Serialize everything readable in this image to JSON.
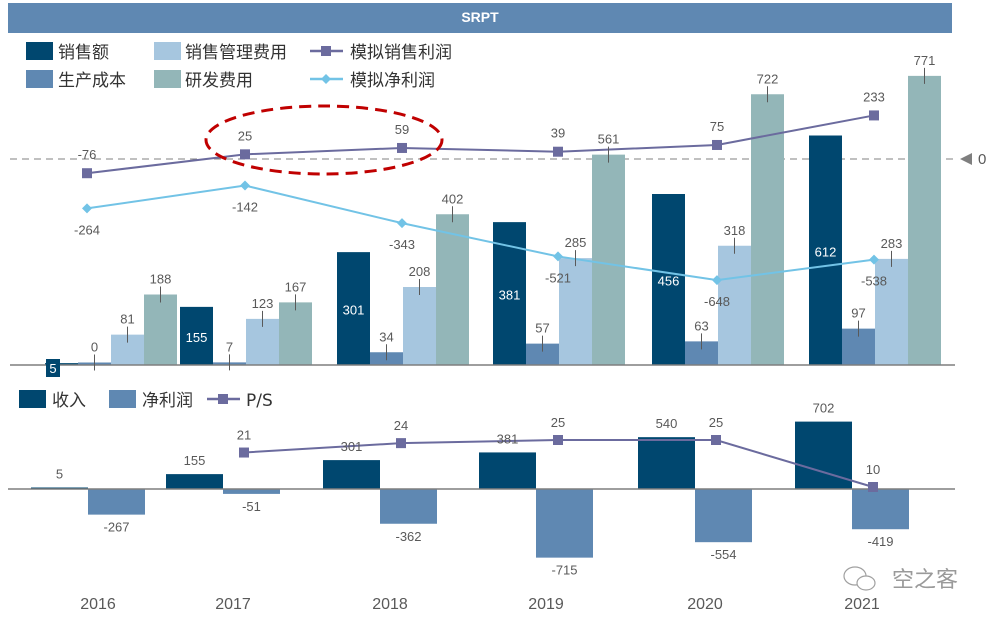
{
  "header": {
    "title": "SRPT"
  },
  "colors": {
    "sales": "#00476f",
    "cost": "#5f88b2",
    "sga": "#a6c6df",
    "rnd": "#93b6b8",
    "sim_sales_profit": "#6b6b9e",
    "sim_net_profit": "#72c3e6",
    "highlight": "#c00000"
  },
  "watermark": "空之客",
  "zero_marker_label": "0",
  "chart_data": [
    {
      "type": "bar",
      "title": "SRPT",
      "categories": [
        "2016",
        "2017",
        "2018",
        "2019",
        "2020",
        "2021"
      ],
      "legend": [
        {
          "name": "销售额",
          "kind": "bar"
        },
        {
          "name": "销售管理费用",
          "kind": "bar"
        },
        {
          "name": "模拟销售利润",
          "kind": "line-square"
        },
        {
          "name": "生产成本",
          "kind": "bar"
        },
        {
          "name": "研发费用",
          "kind": "bar"
        },
        {
          "name": "模拟净利润",
          "kind": "line-diamond"
        }
      ],
      "series": [
        {
          "name": "销售额",
          "type": "bar",
          "values": [
            5,
            155,
            301,
            381,
            456,
            612
          ]
        },
        {
          "name": "生产成本",
          "type": "bar",
          "values": [
            0,
            7,
            34,
            57,
            63,
            97
          ]
        },
        {
          "name": "销售管理费用",
          "type": "bar",
          "values": [
            81,
            123,
            208,
            285,
            318,
            283
          ]
        },
        {
          "name": "研发费用",
          "type": "bar",
          "values": [
            188,
            167,
            402,
            561,
            722,
            771
          ]
        },
        {
          "name": "模拟销售利润",
          "type": "line",
          "values": [
            -76,
            25,
            59,
            39,
            75,
            233
          ]
        },
        {
          "name": "模拟净利润",
          "type": "line",
          "values": [
            -264,
            -142,
            -343,
            -521,
            -648,
            -538
          ]
        }
      ],
      "annotations": [
        "dashed zero reference line for lines (marked 0)",
        "red dashed ellipse highlighting 2017-2018 模拟销售利润 (25, 59)"
      ],
      "ylim": [
        0,
        800
      ],
      "grid": false,
      "legend_position": "top-left"
    },
    {
      "type": "bar",
      "categories": [
        "2016",
        "2017",
        "2018",
        "2019",
        "2020",
        "2021"
      ],
      "legend": [
        {
          "name": "收入",
          "kind": "bar"
        },
        {
          "name": "净利润",
          "kind": "bar"
        },
        {
          "name": "P/S",
          "kind": "line-square"
        }
      ],
      "series": [
        {
          "name": "收入",
          "type": "bar",
          "values": [
            5,
            155,
            301,
            381,
            540,
            702
          ]
        },
        {
          "name": "净利润",
          "type": "bar",
          "values": [
            -267,
            -51,
            -362,
            -715,
            -554,
            -419
          ]
        },
        {
          "name": "P/S",
          "type": "line",
          "values": [
            null,
            21,
            24,
            25,
            25,
            10
          ]
        }
      ],
      "xlabel": "",
      "ylim": [
        -750,
        750
      ],
      "grid": false,
      "legend_position": "top-left"
    }
  ]
}
